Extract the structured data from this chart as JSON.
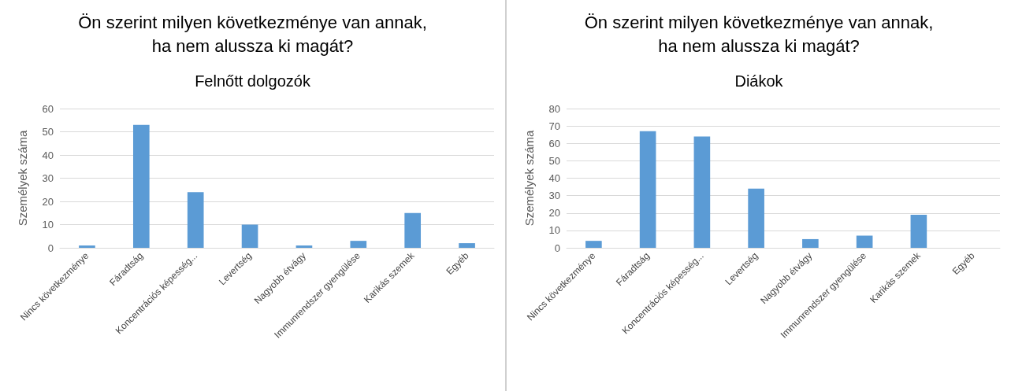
{
  "chart_data": [
    {
      "type": "bar",
      "title": "Ön szerint milyen következménye van annak,\nha nem alussza ki magát?",
      "subtitle": "Felnőtt dolgozók",
      "ylabel": "Személyek száma",
      "categories": [
        "Nincs következménye",
        "Fáradtság",
        "Koncentrációs képesség...",
        "Levertség",
        "Nagyobb étvágy",
        "Immunrendszer gyengülése",
        "Karikás szemek",
        "Egyéb"
      ],
      "values": [
        1,
        53,
        24,
        10,
        1,
        3,
        15,
        2
      ],
      "color": "#5b9bd5",
      "ylim": [
        0,
        60
      ],
      "yticks": [
        0,
        10,
        20,
        30,
        40,
        50,
        60
      ],
      "grid": "y"
    },
    {
      "type": "bar",
      "title": "Ön szerint milyen következménye van annak,\nha nem alussza ki magát?",
      "subtitle": "Diákok",
      "ylabel": "Személyek száma",
      "categories": [
        "Nincs következménye",
        "Fáradtság",
        "Koncentrációs képesség...",
        "Levertség",
        "Nagyobb étvágy",
        "Immunrendszer gyengülése",
        "Karikás szemek",
        "Egyéb"
      ],
      "values": [
        4,
        67,
        64,
        34,
        5,
        7,
        19,
        0
      ],
      "color": "#5b9bd5",
      "ylim": [
        0,
        80
      ],
      "yticks": [
        0,
        10,
        20,
        30,
        40,
        50,
        60,
        70,
        80
      ],
      "grid": "y"
    }
  ]
}
